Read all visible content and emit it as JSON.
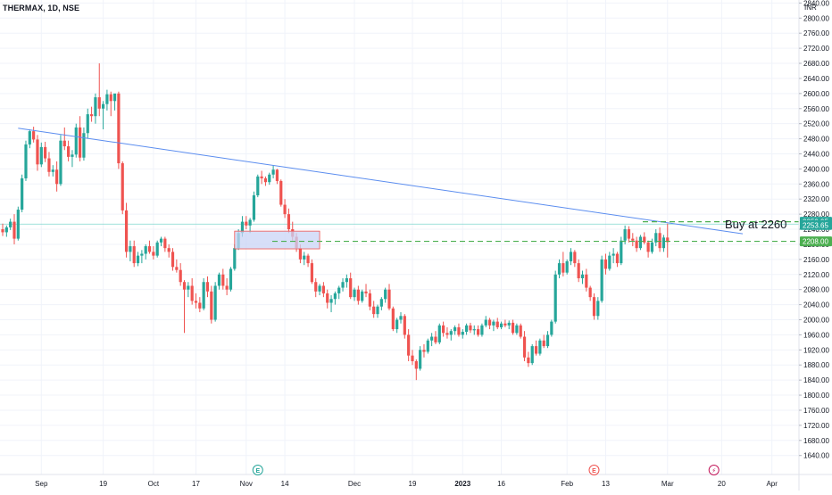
{
  "header": {
    "symbol": "THERMAX, 1D, NSE",
    "currency": "INR"
  },
  "annotation_text": "Buy at 2260",
  "colors": {
    "up": "#26a69a",
    "down": "#ef5350",
    "trendline": "#5b8def",
    "dashed": "#4caf50",
    "box_fill": "#c9d4f5",
    "box_stroke": "#ef5350",
    "hline": "#7fd6cf",
    "axis_text": "#131722",
    "event_green": "#26a69a",
    "event_red": "#ef5350",
    "event_purple": "#c2185b"
  },
  "price_tags": [
    {
      "value": "2259.95",
      "color": "#26a69a"
    },
    {
      "value": "2253.65",
      "color": "#26a69a"
    },
    {
      "value": "2208.00",
      "color": "#4caf50"
    }
  ],
  "events": [
    {
      "icon": "earnings-icon",
      "glyph": "E",
      "color": "#26a69a",
      "date_index": 66
    },
    {
      "icon": "earnings-icon",
      "glyph": "E",
      "color": "#ef5350",
      "date_index": 153
    },
    {
      "icon": "dividend-icon",
      "glyph": "⚡",
      "color": "#c2185b",
      "date_index": 184
    }
  ],
  "chart_data": {
    "type": "candlestick",
    "title": "THERMAX, 1D, NSE",
    "ylabel": "INR",
    "ylim": [
      1600,
      2880
    ],
    "y_ticks": [
      "1640.00",
      "1680.00",
      "1720.00",
      "1760.00",
      "1800.00",
      "1840.00",
      "1880.00",
      "1920.00",
      "1960.00",
      "2000.00",
      "2040.00",
      "2080.00",
      "2120.00",
      "2160.00",
      "2200.00",
      "2240.00",
      "2280.00",
      "2320.00",
      "2360.00",
      "2400.00",
      "2440.00",
      "2480.00",
      "2520.00",
      "2560.00",
      "2600.00",
      "2640.00",
      "2680.00",
      "2720.00",
      "2760.00",
      "2800.00",
      "2840.00"
    ],
    "x_ticks": [
      {
        "label": "Sep",
        "index": 10,
        "bold": false
      },
      {
        "label": "19",
        "index": 26,
        "bold": false
      },
      {
        "label": "Oct",
        "index": 39,
        "bold": false
      },
      {
        "label": "17",
        "index": 50,
        "bold": false
      },
      {
        "label": "Nov",
        "index": 63,
        "bold": false
      },
      {
        "label": "14",
        "index": 73,
        "bold": false
      },
      {
        "label": "Dec",
        "index": 91,
        "bold": false
      },
      {
        "label": "19",
        "index": 106,
        "bold": false
      },
      {
        "label": "2023",
        "index": 119,
        "bold": true
      },
      {
        "label": "16",
        "index": 129,
        "bold": false
      },
      {
        "label": "Feb",
        "index": 146,
        "bold": false
      },
      {
        "label": "13",
        "index": 156,
        "bold": false
      },
      {
        "label": "Mar",
        "index": 172,
        "bold": false
      },
      {
        "label": "20",
        "index": 186,
        "bold": false
      },
      {
        "label": "Apr",
        "index": 199,
        "bold": false
      }
    ],
    "x_domain": [
      0,
      210
    ],
    "candles": [
      [
        2240,
        2255,
        2222,
        2232
      ],
      [
        2232,
        2250,
        2220,
        2245
      ],
      [
        2245,
        2268,
        2238,
        2260
      ],
      [
        2260,
        2280,
        2200,
        2215
      ],
      [
        2215,
        2300,
        2210,
        2292
      ],
      [
        2292,
        2385,
        2285,
        2375
      ],
      [
        2375,
        2475,
        2368,
        2465
      ],
      [
        2465,
        2505,
        2455,
        2500
      ],
      [
        2500,
        2512,
        2470,
        2478
      ],
      [
        2478,
        2490,
        2395,
        2412
      ],
      [
        2412,
        2470,
        2405,
        2458
      ],
      [
        2458,
        2472,
        2418,
        2428
      ],
      [
        2428,
        2445,
        2380,
        2392
      ],
      [
        2392,
        2410,
        2380,
        2398
      ],
      [
        2398,
        2420,
        2340,
        2360
      ],
      [
        2360,
        2490,
        2355,
        2475
      ],
      [
        2475,
        2510,
        2450,
        2460
      ],
      [
        2460,
        2475,
        2420,
        2432
      ],
      [
        2432,
        2450,
        2405,
        2438
      ],
      [
        2438,
        2520,
        2430,
        2510
      ],
      [
        2510,
        2540,
        2420,
        2430
      ],
      [
        2430,
        2510,
        2422,
        2495
      ],
      [
        2495,
        2560,
        2480,
        2545
      ],
      [
        2545,
        2565,
        2525,
        2540
      ],
      [
        2540,
        2600,
        2520,
        2590
      ],
      [
        2590,
        2680,
        2540,
        2560
      ],
      [
        2560,
        2580,
        2505,
        2572
      ],
      [
        2572,
        2610,
        2555,
        2598
      ],
      [
        2598,
        2605,
        2540,
        2580
      ],
      [
        2580,
        2590,
        2555,
        2600
      ],
      [
        2600,
        2605,
        2400,
        2415
      ],
      [
        2415,
        2420,
        2280,
        2290
      ],
      [
        2290,
        2310,
        2165,
        2180
      ],
      [
        2180,
        2210,
        2155,
        2195
      ],
      [
        2195,
        2210,
        2140,
        2150
      ],
      [
        2150,
        2180,
        2142,
        2170
      ],
      [
        2170,
        2185,
        2150,
        2175
      ],
      [
        2175,
        2200,
        2160,
        2195
      ],
      [
        2195,
        2210,
        2175,
        2180
      ],
      [
        2180,
        2195,
        2160,
        2170
      ],
      [
        2170,
        2210,
        2165,
        2205
      ],
      [
        2205,
        2220,
        2195,
        2215
      ],
      [
        2215,
        2220,
        2180,
        2190
      ],
      [
        2190,
        2200,
        2165,
        2180
      ],
      [
        2180,
        2190,
        2130,
        2140
      ],
      [
        2140,
        2160,
        2125,
        2132
      ],
      [
        2132,
        2150,
        2090,
        2100
      ],
      [
        2100,
        2105,
        1965,
        2080
      ],
      [
        2080,
        2100,
        2060,
        2090
      ],
      [
        2090,
        2110,
        2040,
        2050
      ],
      [
        2050,
        2070,
        2030,
        2045
      ],
      [
        2045,
        2060,
        2020,
        2030
      ],
      [
        2030,
        2110,
        2025,
        2100
      ],
      [
        2100,
        2115,
        2060,
        2075
      ],
      [
        2075,
        2090,
        1990,
        2000
      ],
      [
        2000,
        2100,
        1995,
        2090
      ],
      [
        2090,
        2125,
        2080,
        2120
      ],
      [
        2120,
        2135,
        2080,
        2090
      ],
      [
        2090,
        2110,
        2065,
        2080
      ],
      [
        2080,
        2140,
        2075,
        2135
      ],
      [
        2135,
        2200,
        2130,
        2190
      ],
      [
        2190,
        2240,
        2185,
        2230
      ],
      [
        2230,
        2275,
        2220,
        2260
      ],
      [
        2260,
        2275,
        2240,
        2250
      ],
      [
        2250,
        2270,
        2230,
        2265
      ],
      [
        2265,
        2340,
        2260,
        2330
      ],
      [
        2330,
        2385,
        2325,
        2380
      ],
      [
        2380,
        2395,
        2360,
        2375
      ],
      [
        2375,
        2380,
        2355,
        2365
      ],
      [
        2365,
        2390,
        2358,
        2385
      ],
      [
        2385,
        2410,
        2375,
        2398
      ],
      [
        2398,
        2400,
        2360,
        2368
      ],
      [
        2368,
        2372,
        2300,
        2305
      ],
      [
        2305,
        2320,
        2270,
        2280
      ],
      [
        2280,
        2295,
        2230,
        2240
      ],
      [
        2240,
        2260,
        2210,
        2220
      ],
      [
        2220,
        2230,
        2180,
        2190
      ],
      [
        2190,
        2200,
        2150,
        2160
      ],
      [
        2160,
        2180,
        2145,
        2170
      ],
      [
        2170,
        2175,
        2140,
        2150
      ],
      [
        2150,
        2160,
        2095,
        2100
      ],
      [
        2100,
        2110,
        2060,
        2075
      ],
      [
        2075,
        2095,
        2065,
        2090
      ],
      [
        2090,
        2100,
        2060,
        2070
      ],
      [
        2070,
        2080,
        2030,
        2045
      ],
      [
        2045,
        2065,
        2020,
        2055
      ],
      [
        2055,
        2075,
        2040,
        2070
      ],
      [
        2070,
        2090,
        2055,
        2085
      ],
      [
        2085,
        2110,
        2075,
        2100
      ],
      [
        2100,
        2120,
        2085,
        2110
      ],
      [
        2110,
        2125,
        2055,
        2060
      ],
      [
        2060,
        2085,
        2050,
        2080
      ],
      [
        2080,
        2090,
        2040,
        2050
      ],
      [
        2050,
        2080,
        2045,
        2075
      ],
      [
        2075,
        2095,
        2060,
        2070
      ],
      [
        2070,
        2080,
        2025,
        2035
      ],
      [
        2035,
        2050,
        2005,
        2015
      ],
      [
        2015,
        2040,
        2005,
        2035
      ],
      [
        2035,
        2060,
        2025,
        2055
      ],
      [
        2055,
        2085,
        2045,
        2080
      ],
      [
        2080,
        2095,
        2025,
        2030
      ],
      [
        2030,
        2035,
        1970,
        1975
      ],
      [
        1975,
        2005,
        1965,
        2000
      ],
      [
        2000,
        2020,
        1990,
        2010
      ],
      [
        2010,
        2015,
        1950,
        1960
      ],
      [
        1960,
        1975,
        1890,
        1905
      ],
      [
        1905,
        1920,
        1880,
        1890
      ],
      [
        1890,
        1895,
        1840,
        1870
      ],
      [
        1870,
        1930,
        1865,
        1920
      ],
      [
        1920,
        1935,
        1900,
        1915
      ],
      [
        1915,
        1950,
        1910,
        1945
      ],
      [
        1945,
        1965,
        1930,
        1955
      ],
      [
        1955,
        1970,
        1935,
        1940
      ],
      [
        1940,
        1990,
        1935,
        1985
      ],
      [
        1985,
        1995,
        1955,
        1965
      ],
      [
        1965,
        1980,
        1950,
        1960
      ],
      [
        1960,
        1975,
        1945,
        1970
      ],
      [
        1970,
        1985,
        1960,
        1980
      ],
      [
        1980,
        1990,
        1955,
        1960
      ],
      [
        1960,
        1975,
        1950,
        1968
      ],
      [
        1968,
        1990,
        1960,
        1985
      ],
      [
        1985,
        1992,
        1965,
        1972
      ],
      [
        1972,
        1985,
        1960,
        1975
      ],
      [
        1975,
        1985,
        1955,
        1960
      ],
      [
        1960,
        1990,
        1955,
        1985
      ],
      [
        1985,
        2010,
        1980,
        2000
      ],
      [
        2000,
        2005,
        1975,
        1985
      ],
      [
        1985,
        2000,
        1970,
        1995
      ],
      [
        1995,
        2005,
        1975,
        1980
      ],
      [
        1980,
        1995,
        1975,
        1990
      ],
      [
        1990,
        2000,
        1980,
        1985
      ],
      [
        1985,
        1998,
        1975,
        1992
      ],
      [
        1992,
        2000,
        1960,
        1965
      ],
      [
        1965,
        1990,
        1960,
        1985
      ],
      [
        1985,
        1990,
        1950,
        1955
      ],
      [
        1955,
        1970,
        1890,
        1900
      ],
      [
        1900,
        1915,
        1875,
        1885
      ],
      [
        1885,
        1935,
        1880,
        1930
      ],
      [
        1930,
        1945,
        1905,
        1910
      ],
      [
        1910,
        1950,
        1905,
        1945
      ],
      [
        1945,
        1960,
        1925,
        1930
      ],
      [
        1930,
        1970,
        1925,
        1960
      ],
      [
        1960,
        2000,
        1955,
        1995
      ],
      [
        1995,
        2130,
        1990,
        2120
      ],
      [
        2120,
        2160,
        2110,
        2150
      ],
      [
        2150,
        2180,
        2115,
        2125
      ],
      [
        2125,
        2160,
        2120,
        2155
      ],
      [
        2155,
        2190,
        2145,
        2180
      ],
      [
        2180,
        2185,
        2140,
        2150
      ],
      [
        2150,
        2160,
        2100,
        2110
      ],
      [
        2110,
        2130,
        2095,
        2120
      ],
      [
        2120,
        2135,
        2075,
        2085
      ],
      [
        2085,
        2090,
        2050,
        2060
      ],
      [
        2060,
        2070,
        2000,
        2010
      ],
      [
        2010,
        2060,
        2000,
        2050
      ],
      [
        2050,
        2170,
        2045,
        2160
      ],
      [
        2160,
        2175,
        2120,
        2135
      ],
      [
        2135,
        2180,
        2130,
        2170
      ],
      [
        2170,
        2190,
        2150,
        2175
      ],
      [
        2175,
        2180,
        2140,
        2150
      ],
      [
        2150,
        2220,
        2145,
        2210
      ],
      [
        2210,
        2250,
        2200,
        2240
      ],
      [
        2240,
        2248,
        2205,
        2215
      ],
      [
        2215,
        2230,
        2195,
        2210
      ],
      [
        2210,
        2220,
        2180,
        2190
      ],
      [
        2190,
        2225,
        2185,
        2220
      ],
      [
        2220,
        2232,
        2200,
        2205
      ],
      [
        2205,
        2210,
        2165,
        2180
      ],
      [
        2180,
        2215,
        2175,
        2205
      ],
      [
        2205,
        2240,
        2195,
        2230
      ],
      [
        2230,
        2245,
        2180,
        2190
      ],
      [
        2190,
        2225,
        2180,
        2218
      ],
      [
        2218,
        2255,
        2165,
        2206
      ]
    ]
  }
}
